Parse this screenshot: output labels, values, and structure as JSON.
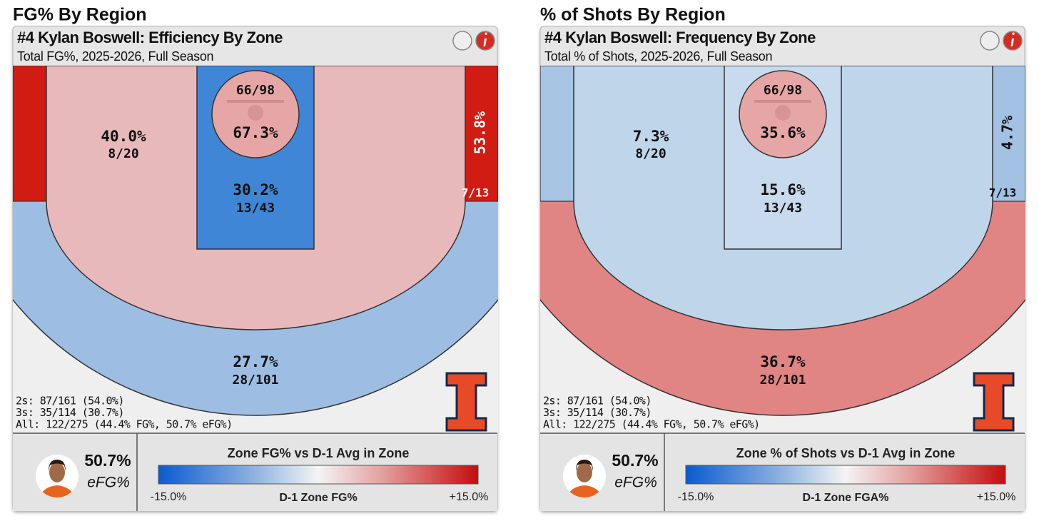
{
  "panels": [
    {
      "heading": "FG% By Region",
      "title": "#4 Kylan Boswell: Efficiency By Zone",
      "subtitle": "Total FG%, 2025-2026, Full Season",
      "zones": {
        "rim": {
          "pct": "67.3%",
          "count": "66/98"
        },
        "paint": {
          "pct": "30.2%",
          "count": "13/43"
        },
        "midrange": {
          "pct": "40.0%",
          "count": "8/20"
        },
        "corner_three": {
          "pct": "53.8%",
          "count": "7/13"
        },
        "above_break_three": {
          "pct": "27.7%",
          "count": "28/101"
        }
      },
      "stats": [
        "2s: 87/161 (54.0%)",
        "3s: 35/114 (30.7%)",
        "All: 122/275 (44.4% FG%, 50.7% eFG%)"
      ],
      "efg": {
        "value": "50.7%",
        "label": "eFG%"
      },
      "legend": {
        "title": "Zone FG% vs D-1 Avg in Zone",
        "min": "-15.0%",
        "mid": "D-1 Zone FG%",
        "max": "+15.0%"
      }
    },
    {
      "heading": "% of Shots By Region",
      "title": "#4 Kylan Boswell: Frequency By Zone",
      "subtitle": "Total % of Shots, 2025-2026, Full Season",
      "zones": {
        "rim": {
          "pct": "35.6%",
          "count": "66/98"
        },
        "paint": {
          "pct": "15.6%",
          "count": "13/43"
        },
        "midrange": {
          "pct": "7.3%",
          "count": "8/20"
        },
        "corner_three": {
          "pct": "4.7%",
          "count": "7/13"
        },
        "above_break_three": {
          "pct": "36.7%",
          "count": "28/101"
        }
      },
      "stats": [
        "2s: 87/161 (54.0%)",
        "3s: 35/114 (30.7%)",
        "All: 122/275 (44.4% FG%, 50.7% eFG%)"
      ],
      "efg": {
        "value": "50.7%",
        "label": "eFG%"
      },
      "legend": {
        "title": "Zone % of Shots vs D-1 Avg in Zone",
        "min": "-15.0%",
        "mid": "D-1 Zone FGA%",
        "max": "+15.0%"
      }
    }
  ]
}
